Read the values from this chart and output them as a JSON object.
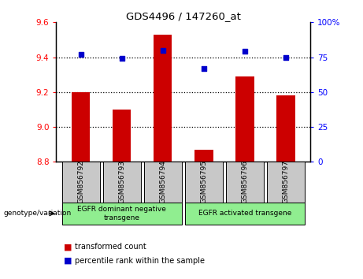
{
  "title": "GDS4496 / 147260_at",
  "categories": [
    "GSM856792",
    "GSM856793",
    "GSM856794",
    "GSM856795",
    "GSM856796",
    "GSM856797"
  ],
  "bar_values": [
    9.2,
    9.1,
    9.53,
    8.87,
    9.29,
    9.18
  ],
  "bar_baseline": 8.8,
  "percentile_values": [
    77,
    74,
    80,
    67,
    79,
    75
  ],
  "ylim_left": [
    8.8,
    9.6
  ],
  "ylim_right": [
    0,
    100
  ],
  "yticks_left": [
    8.8,
    9.0,
    9.2,
    9.4,
    9.6
  ],
  "yticks_right": [
    0,
    25,
    50,
    75,
    100
  ],
  "bar_color": "#cc0000",
  "scatter_color": "#0000cc",
  "group1_label": "EGFR dominant negative\ntransgene",
  "group2_label": "EGFR activated transgene",
  "group1_indices": [
    0,
    1,
    2
  ],
  "group2_indices": [
    3,
    4,
    5
  ],
  "legend_bar_label": "transformed count",
  "legend_scatter_label": "percentile rank within the sample",
  "genotype_label": "genotype/variation",
  "group_bg": "#90ee90",
  "tick_bg": "#c8c8c8"
}
